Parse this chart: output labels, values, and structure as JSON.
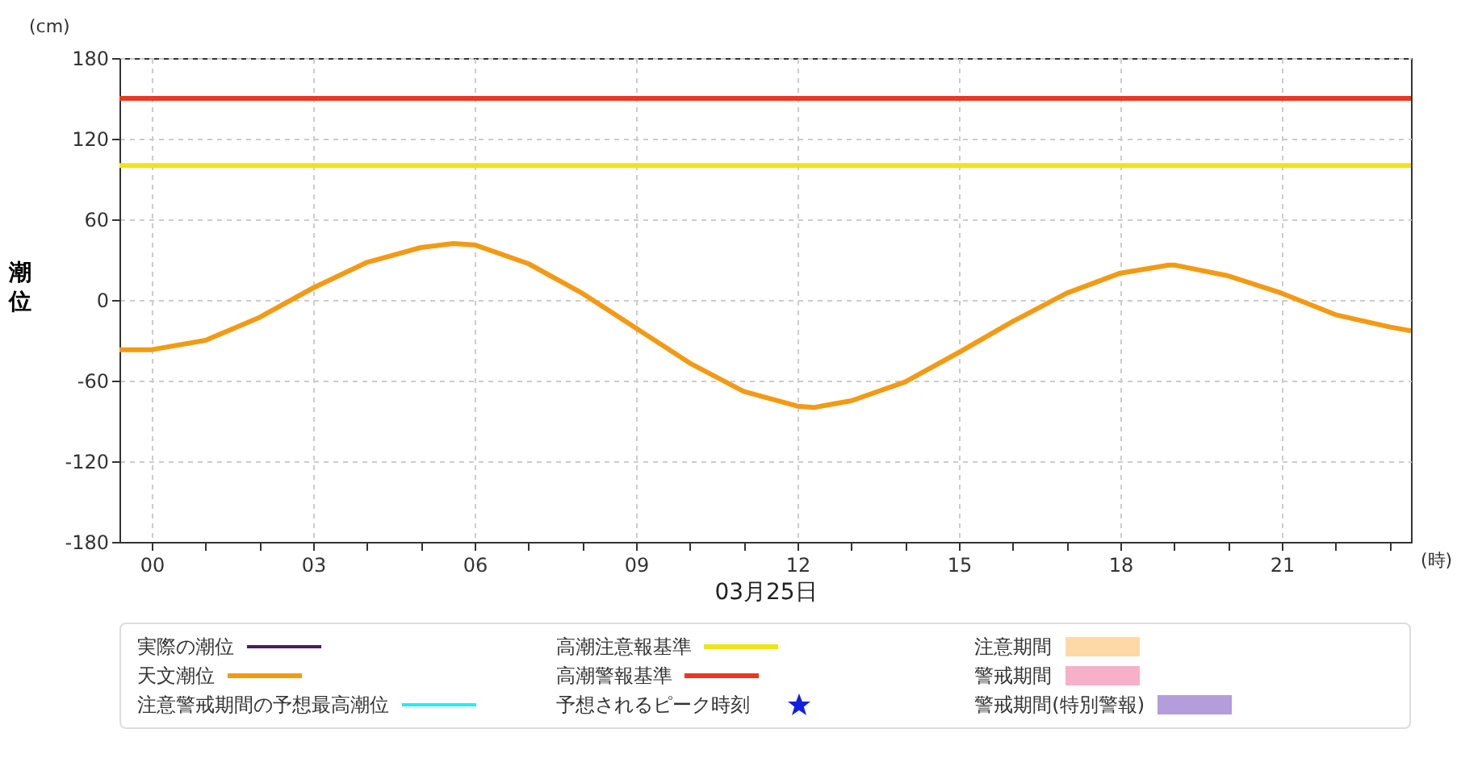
{
  "chart_data": {
    "type": "line",
    "ylabel": "潮位",
    "xlabel": "03月25日",
    "annotations": [
      "(cm)",
      "(時)"
    ],
    "xlim": [
      -0.6,
      23.4
    ],
    "ylim": [
      -180,
      180
    ],
    "yticks": [
      -180,
      -120,
      -60,
      0,
      60,
      120,
      180
    ],
    "xticks": [
      {
        "value": 0,
        "label": "00"
      },
      {
        "value": 1,
        "label": null
      },
      {
        "value": 2,
        "label": null
      },
      {
        "value": 3,
        "label": "03"
      },
      {
        "value": 4,
        "label": null
      },
      {
        "value": 5,
        "label": null
      },
      {
        "value": 6,
        "label": "06"
      },
      {
        "value": 7,
        "label": null
      },
      {
        "value": 8,
        "label": null
      },
      {
        "value": 9,
        "label": "09"
      },
      {
        "value": 10,
        "label": null
      },
      {
        "value": 11,
        "label": null
      },
      {
        "value": 12,
        "label": "12"
      },
      {
        "value": 13,
        "label": null
      },
      {
        "value": 14,
        "label": null
      },
      {
        "value": 15,
        "label": "15"
      },
      {
        "value": 16,
        "label": null
      },
      {
        "value": 17,
        "label": null
      },
      {
        "value": 18,
        "label": "18"
      },
      {
        "value": 19,
        "label": null
      },
      {
        "value": 20,
        "label": null
      },
      {
        "value": 21,
        "label": "21"
      },
      {
        "value": 22,
        "label": null
      },
      {
        "value": 23,
        "label": null
      }
    ],
    "grid": true,
    "legend": "bottom",
    "line_style": "solid",
    "series": [
      {
        "name": "実際の潮位",
        "type": "line",
        "color": "#4a1a6a"
      },
      {
        "name": "天文潮位",
        "type": "line",
        "color": "#f39a14",
        "x": [
          -0.6,
          0,
          1,
          2,
          3,
          4,
          5,
          5.6,
          6,
          7,
          8,
          9,
          10,
          11,
          12,
          12.3,
          13,
          14,
          15,
          16,
          17,
          18,
          18.9,
          19,
          20,
          21,
          22,
          23,
          23.4
        ],
        "values": [
          -37,
          -37,
          -30,
          -13,
          9,
          28,
          39,
          42,
          41,
          27,
          5,
          -21,
          -47,
          -68,
          -79,
          -80,
          -75,
          -61,
          -39,
          -16,
          5,
          20,
          26,
          26,
          18,
          5,
          -11,
          -20,
          -23
        ]
      },
      {
        "name": "注意警戒期間の予想最高潮位",
        "type": "line",
        "color": "#22eeee"
      },
      {
        "name": "予想されるピーク時刻",
        "type": "scatter",
        "marker": "star",
        "color": "#1020e0"
      },
      {
        "name": "注意期間",
        "type": "area",
        "color": "#fdd9a8"
      },
      {
        "name": "警戒期間",
        "type": "area",
        "color": "#f8b0c8"
      },
      {
        "name": "警戒期間(特別警報)",
        "type": "area",
        "color": "#b39ddb"
      }
    ],
    "ref_lines": [
      {
        "axis": "y",
        "value": 100,
        "label": "高潮注意報基準",
        "color": "#f0e31a"
      },
      {
        "axis": "y",
        "value": 150,
        "label": "高潮警報基準",
        "color": "#e83a1e"
      }
    ]
  }
}
